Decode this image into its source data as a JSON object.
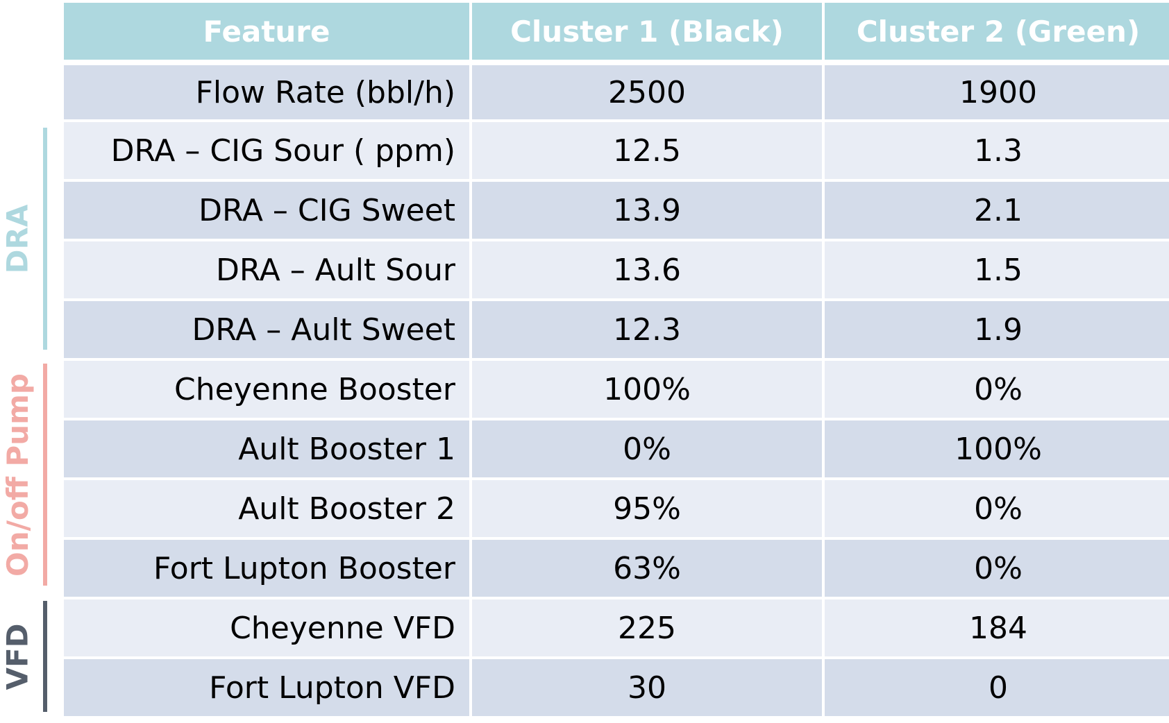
{
  "colors": {
    "header_bg": "#aed8df",
    "header_text": "#ffffff",
    "row_dark": "#d4dcea",
    "row_light": "#e9edf5",
    "dra_group": "#aed8df",
    "pump_group": "#f2aaa5",
    "vfd_group": "#555e6b"
  },
  "table": {
    "headers": [
      "Feature",
      "Cluster 1 (Black)",
      "Cluster 2 (Green)"
    ],
    "rows": [
      [
        "Flow Rate (bbl/h)",
        "2500",
        "1900"
      ],
      [
        "DRA – CIG Sour ( ppm)",
        "12.5",
        "1.3"
      ],
      [
        "DRA – CIG Sweet",
        "13.9",
        "2.1"
      ],
      [
        "DRA – Ault Sour",
        "13.6",
        "1.5"
      ],
      [
        "DRA – Ault Sweet",
        "12.3",
        "1.9"
      ],
      [
        "Cheyenne Booster",
        "100%",
        "0%"
      ],
      [
        "Ault Booster 1",
        "0%",
        "100%"
      ],
      [
        "Ault Booster 2",
        "95%",
        "0%"
      ],
      [
        "Fort Lupton Booster",
        "63%",
        "0%"
      ],
      [
        "Cheyenne VFD",
        "225",
        "184"
      ],
      [
        "Fort Lupton VFD",
        "30",
        "0"
      ]
    ]
  },
  "groups": {
    "dra": "DRA",
    "pump": "On/off Pump",
    "vfd": "VFD"
  }
}
